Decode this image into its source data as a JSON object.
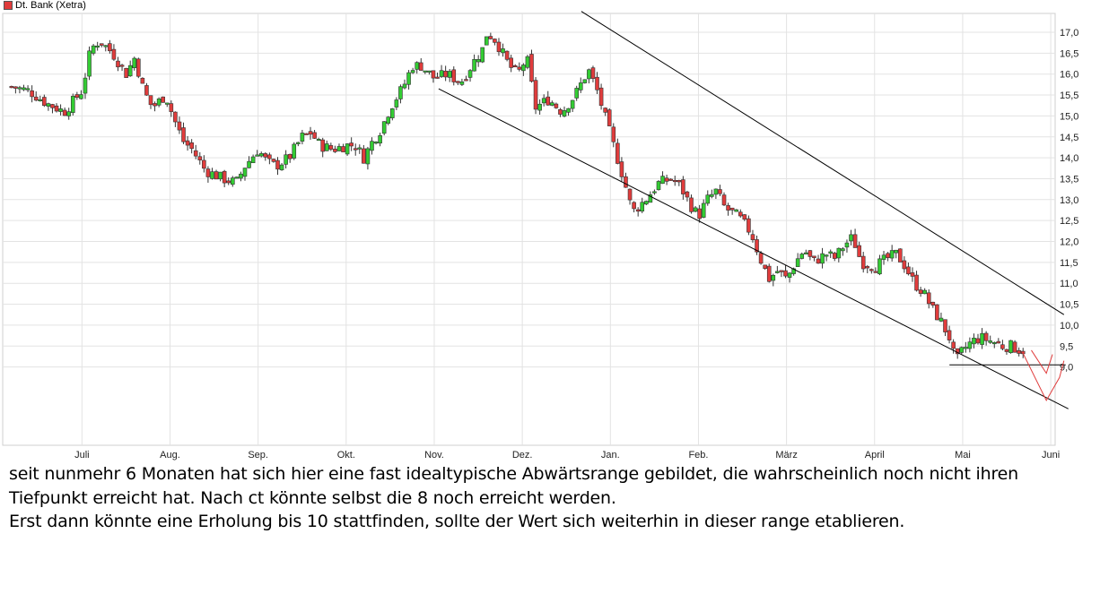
{
  "legend": {
    "label": "Dt. Bank (Xetra)",
    "color": "#e03c3c"
  },
  "caption": {
    "line1": "seit nunmehr 6 Monaten hat sich hier eine fast idealtypische Abwärtsrange gebildet, die wahrscheinlich noch nicht ihren",
    "line2": "Tiefpunkt erreicht hat. Nach ct könnte selbst die 8 noch erreicht werden.",
    "line3": "Erst dann könnte eine Erholung bis 10 stattfinden, sollte der Wert sich weiterhin in dieser range etablieren."
  },
  "chart_data": {
    "type": "candlestick",
    "title": "",
    "series_name": "Dt. Bank (Xetra)",
    "x_ticks": [
      "Juli",
      "Aug.",
      "Sep.",
      "Okt.",
      "Nov.",
      "Dez.",
      "Jan.",
      "Feb.",
      "März",
      "April",
      "Mai",
      "Juni"
    ],
    "y_ticks": [
      "17,0",
      "16,5",
      "16,0",
      "15,5",
      "15,0",
      "14,5",
      "14,0",
      "13,5",
      "13,0",
      "12,5",
      "12,0",
      "11,5",
      "11,0",
      "10,5",
      "10,0",
      "9,5",
      "9,0"
    ],
    "ylim": [
      8.45,
      17.45
    ],
    "x_range_months": [
      5.1,
      17.05
    ],
    "grid": true,
    "colors": {
      "up": "#33cc33",
      "down": "#e03c3c",
      "outline": "#333333",
      "annotation": "#e03c3c"
    },
    "close_path": [
      [
        5.2,
        15.7
      ],
      [
        5.4,
        15.6
      ],
      [
        5.6,
        15.3
      ],
      [
        5.8,
        15.1
      ],
      [
        6.0,
        15.6
      ],
      [
        6.1,
        16.6
      ],
      [
        6.2,
        16.8
      ],
      [
        6.35,
        16.5
      ],
      [
        6.5,
        16.0
      ],
      [
        6.6,
        16.4
      ],
      [
        6.7,
        15.6
      ],
      [
        6.8,
        15.2
      ],
      [
        6.95,
        15.5
      ],
      [
        7.05,
        14.9
      ],
      [
        7.15,
        14.4
      ],
      [
        7.25,
        14.2
      ],
      [
        7.4,
        13.7
      ],
      [
        7.5,
        13.6
      ],
      [
        7.6,
        13.5
      ],
      [
        7.75,
        13.4
      ],
      [
        7.85,
        13.8
      ],
      [
        8.0,
        14.2
      ],
      [
        8.1,
        13.9
      ],
      [
        8.2,
        13.8
      ],
      [
        8.35,
        14.0
      ],
      [
        8.5,
        14.5
      ],
      [
        8.6,
        14.6
      ],
      [
        8.7,
        14.3
      ],
      [
        8.85,
        14.2
      ],
      [
        9.0,
        14.3
      ],
      [
        9.1,
        14.3
      ],
      [
        9.2,
        14.0
      ],
      [
        9.3,
        14.4
      ],
      [
        9.4,
        14.7
      ],
      [
        9.5,
        15.2
      ],
      [
        9.65,
        15.7
      ],
      [
        9.75,
        16.2
      ],
      [
        9.85,
        16.2
      ],
      [
        10.0,
        15.9
      ],
      [
        10.15,
        16.0
      ],
      [
        10.3,
        15.8
      ],
      [
        10.45,
        16.3
      ],
      [
        10.55,
        16.6
      ],
      [
        10.6,
        17.0
      ],
      [
        10.7,
        16.8
      ],
      [
        10.85,
        16.2
      ],
      [
        10.95,
        16.0
      ],
      [
        11.05,
        16.4
      ],
      [
        11.15,
        15.2
      ],
      [
        11.3,
        15.4
      ],
      [
        11.45,
        15.1
      ],
      [
        11.6,
        15.5
      ],
      [
        11.75,
        16.1
      ],
      [
        11.85,
        15.6
      ],
      [
        11.95,
        14.9
      ],
      [
        12.05,
        14.2
      ],
      [
        12.15,
        13.5
      ],
      [
        12.25,
        12.7
      ],
      [
        12.4,
        13.0
      ],
      [
        12.55,
        13.4
      ],
      [
        12.7,
        13.5
      ],
      [
        12.8,
        13.3
      ],
      [
        12.9,
        12.9
      ],
      [
        13.0,
        12.6
      ],
      [
        13.1,
        13.0
      ],
      [
        13.2,
        13.2
      ],
      [
        13.3,
        12.8
      ],
      [
        13.45,
        12.6
      ],
      [
        13.6,
        12.2
      ],
      [
        13.7,
        11.6
      ],
      [
        13.8,
        11.1
      ],
      [
        13.9,
        11.3
      ],
      [
        14.0,
        11.1
      ],
      [
        14.1,
        11.5
      ],
      [
        14.2,
        11.8
      ],
      [
        14.3,
        11.5
      ],
      [
        14.45,
        11.7
      ],
      [
        14.55,
        11.6
      ],
      [
        14.65,
        11.9
      ],
      [
        14.75,
        12.1
      ],
      [
        14.85,
        11.5
      ],
      [
        15.0,
        11.4
      ],
      [
        15.15,
        11.6
      ],
      [
        15.25,
        11.7
      ],
      [
        15.35,
        11.4
      ],
      [
        15.45,
        11.0
      ],
      [
        15.55,
        10.8
      ],
      [
        15.65,
        10.4
      ],
      [
        15.75,
        10.1
      ],
      [
        15.85,
        9.7
      ],
      [
        15.92,
        9.1
      ],
      [
        16.0,
        9.4
      ],
      [
        16.1,
        9.6
      ],
      [
        16.2,
        9.7
      ],
      [
        16.35,
        9.6
      ],
      [
        16.45,
        9.5
      ],
      [
        16.55,
        9.5
      ],
      [
        16.65,
        9.4
      ],
      [
        16.7,
        9.4
      ]
    ],
    "annotations": {
      "channel_upper": [
        [
          11.67,
          17.5
        ],
        [
          17.15,
          10.25
        ]
      ],
      "channel_lower": [
        [
          10.05,
          15.65
        ],
        [
          17.2,
          8.0
        ]
      ],
      "support_line": [
        [
          15.85,
          9.05
        ],
        [
          17.17,
          9.05
        ]
      ],
      "projection": [
        [
          16.68,
          9.35
        ],
        [
          16.95,
          8.2
        ],
        [
          17.1,
          8.75
        ],
        [
          17.15,
          9.15
        ]
      ],
      "projection_lower": [
        [
          16.78,
          9.4
        ],
        [
          16.95,
          8.85
        ],
        [
          17.02,
          9.3
        ]
      ]
    }
  }
}
